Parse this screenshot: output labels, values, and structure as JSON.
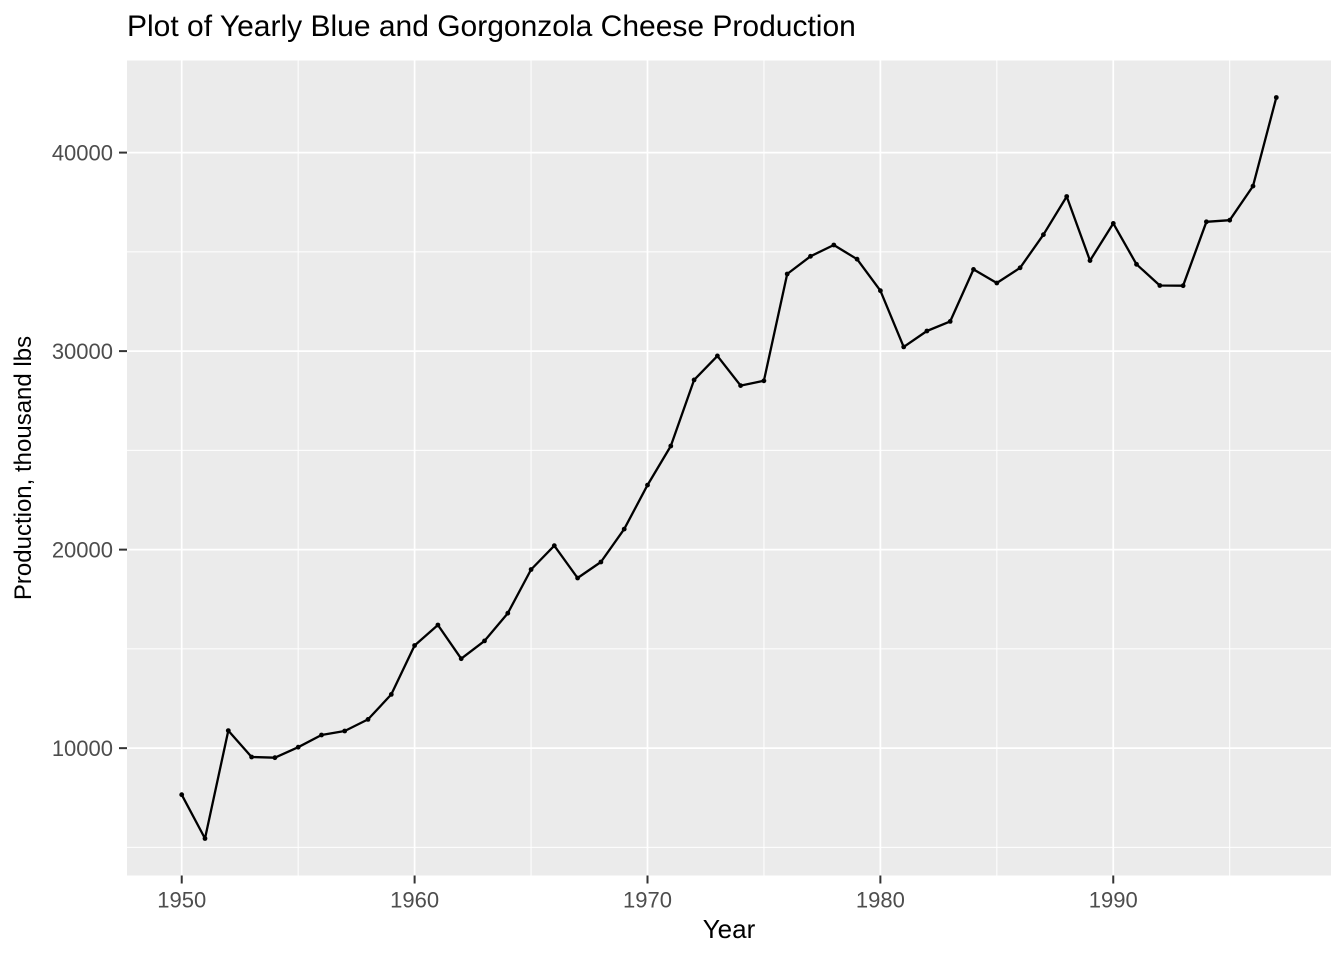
{
  "figure": {
    "title": "Plot of Yearly Blue and Gorgonzola Cheese Production",
    "x_axis_title": "Year",
    "y_axis_title": "Production, thousand lbs"
  },
  "chart_data": {
    "type": "line",
    "title": "Plot of Yearly Blue and Gorgonzola Cheese Production",
    "xlabel": "Year",
    "ylabel": "Production, thousand lbs",
    "x": [
      1950,
      1951,
      1952,
      1953,
      1954,
      1955,
      1956,
      1957,
      1958,
      1959,
      1960,
      1961,
      1962,
      1963,
      1964,
      1965,
      1966,
      1967,
      1968,
      1969,
      1970,
      1971,
      1972,
      1973,
      1974,
      1975,
      1976,
      1977,
      1978,
      1979,
      1980,
      1981,
      1982,
      1983,
      1984,
      1985,
      1986,
      1987,
      1988,
      1989,
      1990,
      1991,
      1992,
      1993,
      1994,
      1995,
      1996,
      1997
    ],
    "series": [
      {
        "name": "Blue and Gorgonzola cheese production",
        "values": [
          7657,
          5451,
          10883,
          9554,
          9519,
          10047,
          10663,
          10864,
          11447,
          12710,
          15169,
          16205,
          14507,
          15400,
          16800,
          19000,
          20198,
          18573,
          19375,
          21032,
          23250,
          25219,
          28549,
          29759,
          28262,
          28506,
          33885,
          34776,
          35347,
          34628,
          33043,
          30214,
          31013,
          31496,
          34115,
          33433,
          34198,
          35863,
          37789,
          34561,
          36434,
          34371,
          33307,
          33295,
          36514,
          36593,
          38311,
          42773
        ]
      }
    ],
    "x_ticks": [
      1950,
      1960,
      1970,
      1980,
      1990
    ],
    "x_minor_ticks": [
      1955,
      1965,
      1975,
      1985,
      1995
    ],
    "y_ticks": [
      10000,
      20000,
      30000,
      40000
    ],
    "y_minor_ticks": [
      5000,
      15000,
      25000,
      35000
    ],
    "xlim": [
      1947.65,
      1999.35
    ],
    "ylim": [
      3585,
      44639
    ],
    "grid": "on",
    "legend": "none",
    "style": {
      "panel_background": "#EBEBEB",
      "grid_color": "#FFFFFF",
      "line_color": "#000000",
      "point_color": "#000000",
      "tick_mark_color": "#333333",
      "tick_label_color": "#4D4D4D",
      "title_color": "#000000",
      "axis_title_color": "#000000"
    }
  }
}
